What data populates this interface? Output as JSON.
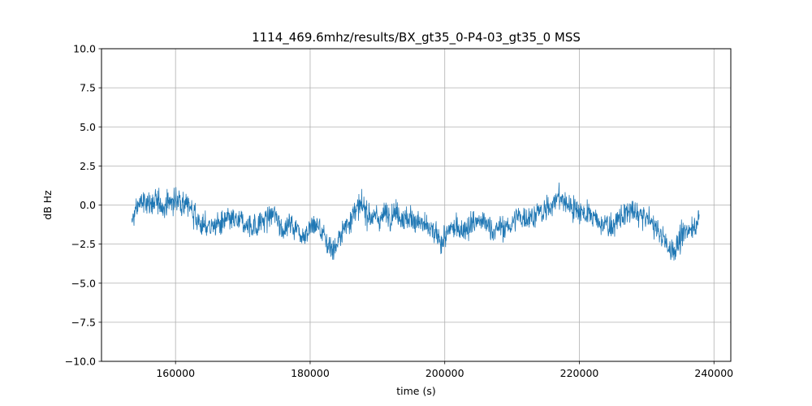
{
  "chart_data": {
    "type": "line",
    "title": "1114_469.6mhz/results/BX_gt35_0-P4-03_gt35_0 MSS",
    "xlabel": "time (s)",
    "ylabel": "dB Hz",
    "xlim": [
      149000,
      242500
    ],
    "ylim": [
      -10.0,
      10.0
    ],
    "xticks": [
      160000,
      180000,
      200000,
      220000,
      240000
    ],
    "xtick_labels": [
      "160000",
      "180000",
      "200000",
      "220000",
      "240000"
    ],
    "yticks": [
      -10.0,
      -7.5,
      -5.0,
      -2.5,
      0.0,
      2.5,
      5.0,
      7.5,
      10.0
    ],
    "ytick_labels": [
      "−10.0",
      "−7.5",
      "−5.0",
      "−2.5",
      "0.0",
      "2.5",
      "5.0",
      "7.5",
      "10.0"
    ],
    "grid": true,
    "series_color": "#1f77b4",
    "trend": {
      "x": [
        153500,
        154500,
        156000,
        158000,
        160000,
        161500,
        162500,
        164000,
        166000,
        168000,
        170000,
        172000,
        174500,
        176000,
        177000,
        179000,
        181000,
        182500,
        183500,
        185000,
        186500,
        188000,
        190000,
        192500,
        194500,
        196000,
        197500,
        199500,
        201000,
        203000,
        205000,
        207000,
        209000,
        211000,
        213000,
        215000,
        216500,
        218000,
        220000,
        221500,
        223000,
        225000,
        227000,
        229000,
        231000,
        232500,
        233500,
        235000,
        236500,
        237800
      ],
      "y": [
        -1.2,
        0.1,
        0.2,
        0.0,
        0.3,
        0.2,
        -0.3,
        -1.4,
        -1.3,
        -1.1,
        -1.2,
        -1.3,
        -0.6,
        -1.4,
        -1.2,
        -1.8,
        -1.2,
        -2.4,
        -2.8,
        -1.6,
        -0.3,
        -0.3,
        -0.9,
        -0.3,
        -0.9,
        -1.0,
        -1.6,
        -2.3,
        -1.6,
        -1.4,
        -1.0,
        -1.5,
        -1.5,
        -0.8,
        -0.6,
        -0.5,
        0.6,
        0.1,
        -0.3,
        -0.6,
        -1.2,
        -1.3,
        -0.5,
        -0.6,
        -1.2,
        -2.2,
        -2.9,
        -2.3,
        -1.4,
        -0.8
      ]
    },
    "noise_amplitude": 0.55,
    "n_samples": 1800
  }
}
